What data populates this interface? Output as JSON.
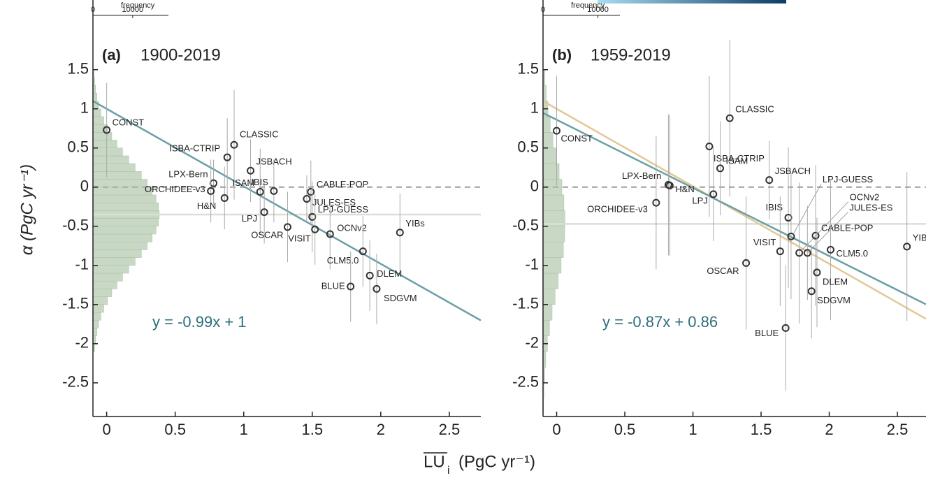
{
  "shared": {
    "ylabel": "α (PgC yr⁻¹)",
    "xlabel_main": "LU",
    "xlabel_sub": "i",
    "xlabel_unit": "(PgC yr⁻¹)"
  },
  "chart_data": [
    {
      "type": "scatter",
      "panel_label": "(a)",
      "title": "1900-2019",
      "labels": [
        "CONST",
        "CLASSIC",
        "ISBA-CTRIP",
        "LPX-Bern",
        "ORCHIDEE-v3",
        "H&N",
        "ISAM",
        "JSBACH",
        "LPJ",
        "IBIS",
        "OSCAR",
        "CABLE-POP",
        "JULES-ES",
        "LPJ-GUESS",
        "VISIT",
        "OCNv2",
        "CLM5.0",
        "DLEM",
        "BLUE",
        "SDGVM",
        "YIBs"
      ],
      "x": [
        0,
        0.93,
        0.88,
        0.78,
        0.76,
        0.86,
        1.12,
        1.05,
        1.15,
        1.22,
        1.32,
        1.49,
        1.46,
        1.5,
        1.52,
        1.63,
        1.87,
        1.92,
        1.78,
        1.97,
        2.14
      ],
      "values": [
        0.73,
        0.54,
        0.38,
        0.05,
        -0.05,
        -0.14,
        -0.06,
        0.21,
        -0.32,
        -0.05,
        -0.51,
        -0.06,
        -0.15,
        -0.38,
        -0.54,
        -0.6,
        -0.82,
        -1.13,
        -1.27,
        -1.3,
        -0.58
      ],
      "errors": [
        0.6,
        0.7,
        0.5,
        0.3,
        0.4,
        0.4,
        0.55,
        0.4,
        0.4,
        0.4,
        0.45,
        0.4,
        0.3,
        0.45,
        0.45,
        0.45,
        0.45,
        0.45,
        0.45,
        0.45,
        0.5
      ],
      "point_color": "#333333",
      "error_color": "#aaaaaa",
      "xlim": [
        -0.1,
        2.73
      ],
      "ylim": [
        -2.93,
        2.39
      ],
      "xticks": [
        0,
        0.5,
        1,
        1.5,
        2,
        2.5
      ],
      "yticks": [
        -2.5,
        -2,
        -1.5,
        -1,
        -0.5,
        0,
        0.5,
        1,
        1.5
      ],
      "fit": {
        "slope": -0.99,
        "intercept": 1,
        "label": "y = -0.99x + 1",
        "color": "#6b9fa8"
      },
      "reference_lines": [
        {
          "value": 0,
          "style": "dashed",
          "color": "#b0b0b0"
        },
        {
          "value": -0.35,
          "style": "solid",
          "color": "#d8e0d2"
        }
      ],
      "histogram": {
        "xlabel": "frequency",
        "xlim": [
          0,
          19000
        ],
        "xticks": [
          0,
          10000
        ],
        "color": "#c8d8c4",
        "bins": [
          -2.1,
          -2,
          -1.9,
          -1.8,
          -1.7,
          -1.6,
          -1.5,
          -1.4,
          -1.3,
          -1.2,
          -1.1,
          -1,
          -0.9,
          -0.8,
          -0.7,
          -0.6,
          -0.5,
          -0.4,
          -0.3,
          -0.2,
          -0.1,
          0,
          0.1,
          0.2,
          0.3,
          0.4,
          0.5,
          0.6,
          0.7,
          0.8,
          0.9,
          1,
          1.1,
          1.2,
          1.3,
          1.4,
          1.5
        ],
        "counts": [
          440,
          670,
          990,
          1420,
          1990,
          2720,
          3640,
          4740,
          6030,
          7460,
          9010,
          10620,
          12190,
          13660,
          14910,
          15880,
          16490,
          16700,
          16490,
          15880,
          14910,
          13660,
          12190,
          10620,
          9010,
          7460,
          6030,
          4740,
          3640,
          2720,
          1990,
          1420,
          990,
          670,
          440,
          280
        ]
      }
    },
    {
      "type": "scatter",
      "panel_label": "(b)",
      "title": "1959-2019",
      "labels": [
        "CONST",
        "CLASSIC",
        "ISBA-CTRIP",
        "ISAM",
        "JSBACH",
        "LPX-Bern",
        "H&N",
        "ORCHIDEE-v3",
        "LPJ",
        "OSCAR",
        "IBIS",
        "LPJ-GUESS",
        "VISIT",
        "OCNv2",
        "JULES-ES",
        "CABLE-POP",
        "CLM5.0",
        "DLEM",
        "SDGVM",
        "BLUE",
        "YIB"
      ],
      "x": [
        0,
        1.27,
        1.12,
        1.2,
        1.56,
        0.82,
        0.83,
        0.73,
        1.15,
        1.39,
        1.7,
        1.72,
        1.64,
        1.78,
        1.84,
        1.9,
        2.01,
        1.91,
        1.87,
        1.68,
        2.57
      ],
      "values": [
        0.72,
        0.88,
        0.52,
        0.24,
        0.09,
        0.03,
        0.02,
        -0.2,
        -0.09,
        -0.97,
        -0.39,
        -0.63,
        -0.82,
        -0.84,
        -0.84,
        -0.62,
        -0.8,
        -1.09,
        -1.33,
        -1.8,
        -0.76
      ],
      "errors": [
        0.7,
        1.0,
        0.9,
        0.6,
        0.5,
        0.9,
        0.9,
        0.85,
        0.6,
        0.85,
        0.9,
        0.8,
        0.7,
        0.9,
        0.6,
        0.9,
        0.9,
        0.7,
        0.6,
        0.8,
        0.95
      ],
      "point_color": "#333333",
      "error_color": "#aaaaaa",
      "xlim": [
        -0.1,
        2.71
      ],
      "ylim": [
        -2.93,
        2.39
      ],
      "xticks": [
        0,
        0.5,
        1,
        1.5,
        2,
        2.5
      ],
      "yticks": [
        -2.5,
        -2,
        -1.5,
        -1,
        -0.5,
        0,
        0.5,
        1,
        1.5
      ],
      "fit": {
        "slope": -0.87,
        "intercept": 0.86,
        "label": "y = -0.87x + 0.86",
        "color": "#6b9fa8"
      },
      "comparison_line": {
        "slope": -0.99,
        "intercept": 1,
        "color": "#e3c896"
      },
      "reference_lines": [
        {
          "value": 0,
          "style": "dashed",
          "color": "#b0b0b0"
        },
        {
          "value": -0.47,
          "style": "solid",
          "color": "#d8e0d2"
        }
      ],
      "histogram": {
        "xlabel": "frequency",
        "xlim": [
          0,
          14000
        ],
        "xticks": [
          0,
          10000
        ],
        "color": "#c8d8c4",
        "bins": [
          -2.9,
          -2.7,
          -2.5,
          -2.3,
          -2.1,
          -1.9,
          -1.7,
          -1.5,
          -1.3,
          -1.1,
          -0.9,
          -0.7,
          -0.5,
          -0.3,
          -0.1,
          0.1,
          0.3,
          0.5,
          0.7,
          0.9,
          1.1,
          1.3,
          1.5
        ],
        "counts": [
          93,
          173,
          304,
          505,
          792,
          1178,
          1653,
          2198,
          2766,
          3294,
          3710,
          3954,
          3986,
          3805,
          3432,
          2931,
          2368,
          1811,
          1311,
          896,
          580,
          355
        ]
      }
    }
  ]
}
